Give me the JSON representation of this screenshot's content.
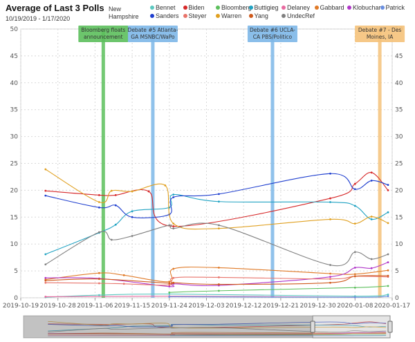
{
  "header": {
    "title": "Average of Last 3 Polls",
    "subtitle": "10/19/2019 - 1/17/2020",
    "legend_title": "New Hampshire"
  },
  "chart_data": {
    "type": "line",
    "title": "Average of Last 3 Polls",
    "subtitle": "10/19/2019 - 1/17/2020",
    "xlabel": "",
    "ylabel": "",
    "ylim": [
      0,
      50
    ],
    "y_ticks": [
      0,
      5,
      10,
      15,
      20,
      25,
      30,
      35,
      40,
      45,
      50
    ],
    "xlim": [
      "2019-10-19",
      "2020-01-17"
    ],
    "x_ticks": [
      "2019-10-19",
      "2019-10-28",
      "2019-11-06",
      "2019-11-15",
      "2019-11-24",
      "2019-12-03",
      "2019-12-12",
      "2019-12-21",
      "2019-12-30",
      "2020-01-08",
      "2020-01-17"
    ],
    "grid": true,
    "legend": "top",
    "series": [
      {
        "name": "Bennet",
        "color": "#5bc8c0",
        "x": [
          "2019-10-25",
          "2019-11-07",
          "2019-11-24",
          "2020-01-08",
          "2020-01-16"
        ],
        "values": [
          0.1,
          0.5,
          0.7,
          0.3,
          0.6
        ]
      },
      {
        "name": "Biden",
        "color": "#d62728",
        "x": [
          "2019-10-25",
          "2019-11-07",
          "2019-11-11",
          "2019-11-19",
          "2019-11-25",
          "2020-01-02",
          "2020-01-08",
          "2020-01-12",
          "2020-01-16"
        ],
        "values": [
          19.9,
          19.1,
          19.1,
          19.8,
          13.3,
          18.5,
          21.2,
          23.3,
          20
        ]
      },
      {
        "name": "Bloomberg",
        "color": "#5cbf5c",
        "x": [
          "2019-11-24",
          "2019-12-06",
          "2020-01-08",
          "2020-01-16"
        ],
        "values": [
          1.0,
          1.3,
          1.9,
          2.2
        ]
      },
      {
        "name": "Buttigieg",
        "color": "#1fa2c2",
        "x": [
          "2019-10-25",
          "2019-11-07",
          "2019-11-11",
          "2019-11-15",
          "2019-11-24",
          "2019-11-25",
          "2019-12-06",
          "2020-01-02",
          "2020-01-08",
          "2020-01-12",
          "2020-01-16"
        ],
        "values": [
          8.1,
          12.1,
          13.6,
          16.1,
          16.8,
          19.2,
          17.9,
          17.8,
          17.1,
          14.6,
          15.9
        ]
      },
      {
        "name": "Delaney",
        "color": "#e86aa0",
        "x": [
          "2019-10-25",
          "2019-11-24",
          "2020-01-08"
        ],
        "values": [
          0.2,
          0.3,
          0.1
        ]
      },
      {
        "name": "Gabbard",
        "color": "#e07a27",
        "x": [
          "2019-10-25",
          "2019-11-07",
          "2019-11-13",
          "2019-11-24",
          "2019-11-25",
          "2019-12-06",
          "2020-01-02",
          "2020-01-08",
          "2020-01-16"
        ],
        "values": [
          3.4,
          4.6,
          4.2,
          3.0,
          5.4,
          5.6,
          4.5,
          4.4,
          5.1
        ]
      },
      {
        "name": "Klobuchar",
        "color": "#b036c9",
        "x": [
          "2019-10-25",
          "2019-11-07",
          "2019-11-24",
          "2019-11-25",
          "2019-12-06",
          "2020-01-02",
          "2020-01-08",
          "2020-01-12",
          "2020-01-16"
        ],
        "values": [
          3.7,
          3.6,
          2.1,
          2.6,
          2.3,
          3.9,
          5.6,
          5.5,
          6.6
        ]
      },
      {
        "name": "Patrick",
        "color": "#6a8fe0",
        "x": [
          "2019-11-24",
          "2020-01-08",
          "2020-01-16"
        ],
        "values": [
          0.2,
          0.1,
          0.3
        ]
      },
      {
        "name": "Sanders",
        "color": "#1f3fcf",
        "x": [
          "2019-10-25",
          "2019-11-07",
          "2019-11-11",
          "2019-11-15",
          "2019-11-24",
          "2019-11-25",
          "2019-12-06",
          "2020-01-02",
          "2020-01-08",
          "2020-01-12",
          "2020-01-16"
        ],
        "values": [
          19.0,
          16.8,
          17.2,
          15.0,
          15.5,
          18.7,
          19.3,
          23.1,
          20.2,
          21.8,
          21.0
        ]
      },
      {
        "name": "Steyer",
        "color": "#e8736a",
        "x": [
          "2019-10-25",
          "2019-11-07",
          "2019-11-13",
          "2019-11-24",
          "2019-11-25",
          "2019-12-06",
          "2020-01-02",
          "2020-01-08",
          "2020-01-16"
        ],
        "values": [
          2.8,
          2.7,
          2.6,
          2.4,
          3.7,
          3.8,
          3.5,
          4.0,
          3.9
        ]
      },
      {
        "name": "Warren",
        "color": "#e0a020",
        "x": [
          "2019-10-25",
          "2019-11-07",
          "2019-11-10",
          "2019-11-15",
          "2019-11-23",
          "2019-11-25",
          "2019-12-06",
          "2020-01-02",
          "2020-01-08",
          "2020-01-12",
          "2020-01-16"
        ],
        "values": [
          23.9,
          17.8,
          19.9,
          19.8,
          20.9,
          13.8,
          12.9,
          14.6,
          13.8,
          15.1,
          13.9
        ]
      },
      {
        "name": "Yang",
        "color": "#cf5a1c",
        "x": [
          "2019-10-25",
          "2019-11-07",
          "2019-11-24",
          "2019-11-25",
          "2019-12-06",
          "2020-01-02",
          "2020-01-08",
          "2020-01-16"
        ],
        "values": [
          3.2,
          3.5,
          2.7,
          2.8,
          2.5,
          2.8,
          4.0,
          4.1
        ]
      },
      {
        "name": "UndecRef",
        "color": "#808080",
        "x": [
          "2019-10-25",
          "2019-11-07",
          "2019-11-10",
          "2019-11-15",
          "2019-11-24",
          "2019-11-25",
          "2019-12-06",
          "2020-01-02",
          "2020-01-08",
          "2020-01-12",
          "2020-01-16"
        ],
        "values": [
          6.2,
          12.2,
          10.8,
          11.5,
          13.5,
          12.9,
          13.5,
          6.1,
          8.5,
          7.2,
          8.1
        ]
      }
    ],
    "annotations": [
      {
        "date": "2019-11-08",
        "label": "Bloomberg floats announcement",
        "color": "#5cbf5c",
        "lines": [
          "Bloomberg floats",
          "announcement"
        ]
      },
      {
        "date": "2019-11-20",
        "label": "Debate #5 Atlanta- GA MSNBC/WaPo",
        "color": "#7db7e8",
        "lines": [
          "Debate #5 Atlanta-",
          "GA MSNBC/WaPo"
        ]
      },
      {
        "date": "2019-12-19",
        "label": "Debate #6 UCLA- CA PBS/Politico",
        "color": "#7db7e8",
        "lines": [
          "Debate #6 UCLA-",
          "CA PBS/Politico"
        ]
      },
      {
        "date": "2020-01-14",
        "label": "Debate #7 - Des Moines, IA",
        "color": "#f5c27a",
        "lines": [
          "Debate #7 - Des",
          "Moines, IA"
        ]
      }
    ],
    "navigator": {
      "selected_range": [
        "2019-12-29",
        "2020-01-17"
      ]
    }
  }
}
